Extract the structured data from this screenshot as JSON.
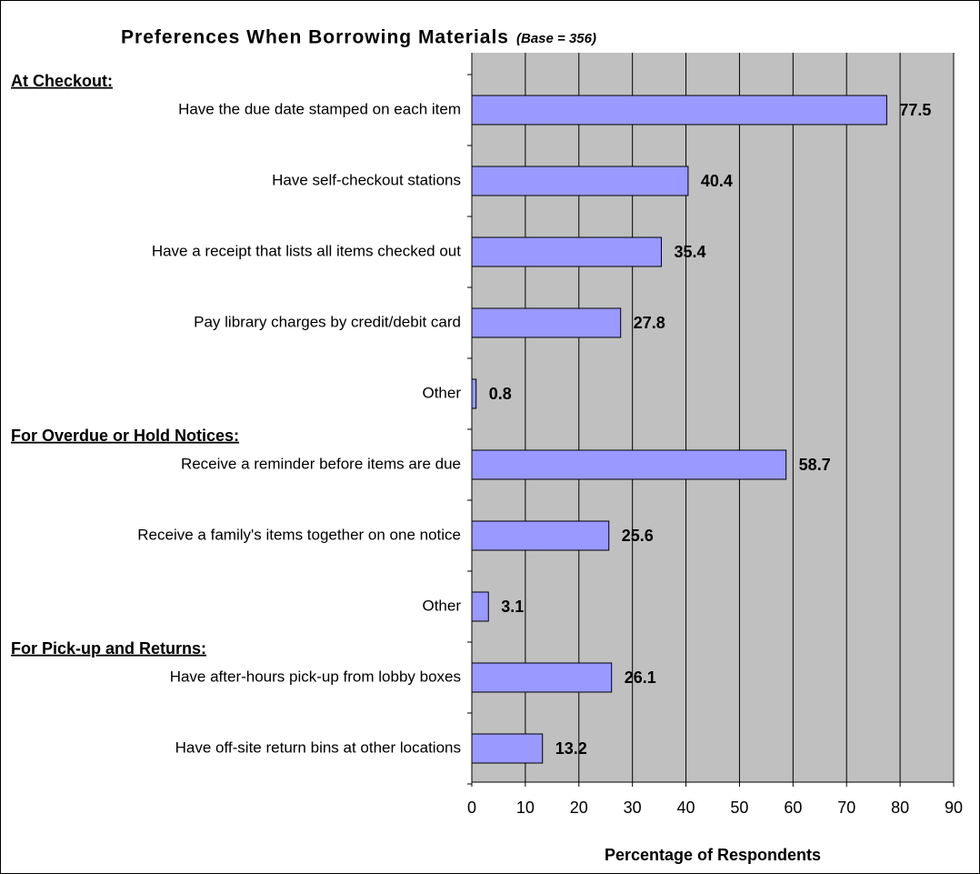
{
  "chart_data": {
    "type": "bar",
    "orientation": "horizontal",
    "title": "Preferences When Borrowing Materials",
    "subtitle": "(Base = 356)",
    "x_label": "Percentage of Respondents",
    "color": "#9999ff",
    "background": "#c0c0c0",
    "grid": true,
    "xlim": [
      0,
      90
    ],
    "xticks": [
      0,
      10,
      20,
      30,
      40,
      50,
      60,
      70,
      80,
      90
    ],
    "groups": [
      {
        "name": "At Checkout:",
        "categories": [
          "Have the due date stamped on each item",
          "Have self-checkout stations",
          "Have a receipt that lists all items checked out",
          "Pay library charges by credit/debit card",
          "Other"
        ],
        "values": [
          77.5,
          40.4,
          35.4,
          27.8,
          0.8
        ]
      },
      {
        "name": "For Overdue or Hold Notices:",
        "categories": [
          "Receive a reminder before items are due",
          "Receive a family's items together on one notice",
          "Other"
        ],
        "values": [
          58.7,
          25.6,
          3.1
        ]
      },
      {
        "name": "For Pick-up and Returns:",
        "categories": [
          "Have after-hours pick-up from lobby boxes",
          "Have off-site return bins at other locations"
        ],
        "values": [
          26.1,
          13.2
        ]
      }
    ]
  }
}
